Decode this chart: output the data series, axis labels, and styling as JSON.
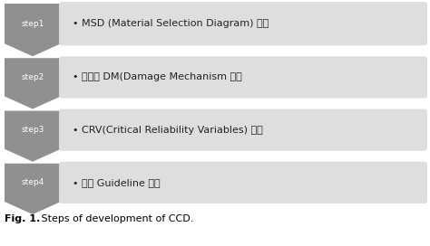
{
  "steps": [
    {
      "label": "step1",
      "text": "• MSD (Material Selection Diagram) 작성"
    },
    {
      "label": "step2",
      "text": "• 장치별 DM(Damage Mechanism 선정"
    },
    {
      "label": "step3",
      "text": "• CRV(Critical Reliability Variables) 선정"
    },
    {
      "label": "step4",
      "text": "• 운전 Guideline 제시"
    }
  ],
  "arrow_color": "#909090",
  "box_color": "#dedede",
  "label_text_color": "#ffffff",
  "text_color": "#222222",
  "caption_bold": "Fig. 1.",
  "caption_normal": " Steps of development of CCD.",
  "bg_color": "#ffffff",
  "fig_width": 4.74,
  "fig_height": 2.72
}
